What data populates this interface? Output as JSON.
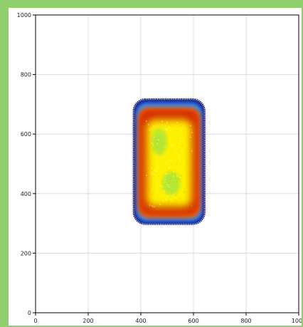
{
  "header": {
    "title": ""
  },
  "chart_data": {
    "type": "heatmap",
    "title": "",
    "xlabel": "",
    "ylabel": "",
    "xlim": [
      0,
      1000
    ],
    "ylim": [
      0,
      1000
    ],
    "x_ticks": [
      0,
      200,
      400,
      600,
      800,
      1000
    ],
    "y_ticks": [
      0,
      200,
      400,
      600,
      800,
      1000
    ],
    "grid": true,
    "legend": "none",
    "colormap": [
      "#1a237e",
      "#1f3fd0",
      "#2ea8ff",
      "#49e3d6",
      "#ffd000",
      "#ff6a00",
      "#c81400",
      "#8a0a00",
      "#fff200",
      "#a8e43a"
    ],
    "density_region": {
      "x": [
        375,
        640
      ],
      "y": [
        300,
        715
      ]
    },
    "layers": [
      {
        "label": "outer-edge",
        "x": [
          375,
          640
        ],
        "y": [
          300,
          715
        ],
        "color": "#1a237e"
      },
      {
        "label": "blue-band",
        "x": [
          380,
          635
        ],
        "y": [
          304,
          708
        ],
        "color": "#1f3fd0"
      },
      {
        "label": "cyan-band",
        "x": [
          384,
          631
        ],
        "y": [
          310,
          702
        ],
        "color": "#2ea8ff"
      },
      {
        "label": "orange-band",
        "x": [
          390,
          625
        ],
        "y": [
          320,
          690
        ],
        "color": "#ff6a00"
      },
      {
        "label": "red-core",
        "x": [
          395,
          620
        ],
        "y": [
          330,
          680
        ],
        "color": "#c81400"
      },
      {
        "label": "yellow-core",
        "x": [
          420,
          595
        ],
        "y": [
          355,
          650
        ],
        "color": "#fff200"
      }
    ],
    "hotspots": [
      {
        "label": "upper-green-spot",
        "x": 470,
        "y": 575,
        "rx": 30,
        "ry": 45,
        "color": "#a8e43a"
      },
      {
        "label": "lower-green-spot",
        "x": 515,
        "y": 435,
        "rx": 35,
        "ry": 40,
        "color": "#a8e43a"
      }
    ]
  }
}
